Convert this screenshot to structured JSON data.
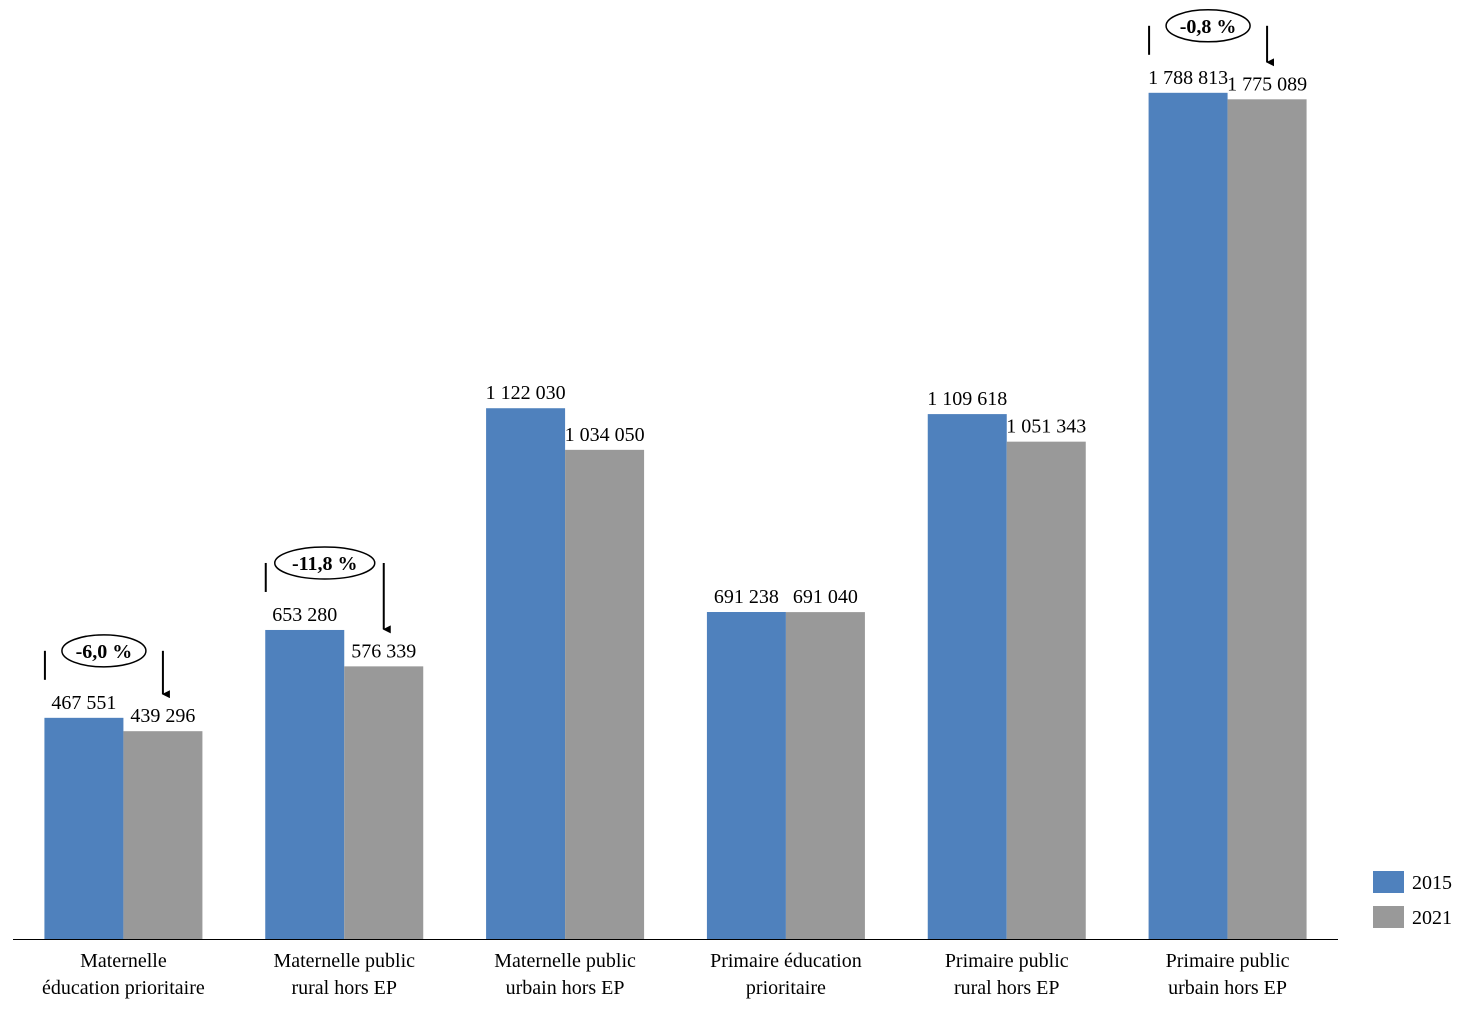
{
  "chart_data": {
    "type": "bar",
    "title": "",
    "xlabel": "",
    "ylabel": "",
    "ylim": [
      0,
      1985000
    ],
    "grid": false,
    "legend_placement": "bottom-right",
    "categories": [
      [
        "Maternelle",
        "éducation prioritaire"
      ],
      [
        "Maternelle public",
        "rural hors EP"
      ],
      [
        "Maternelle public",
        "urbain hors EP"
      ],
      [
        "Primaire éducation",
        "prioritaire"
      ],
      [
        "Primaire public",
        "rural hors EP"
      ],
      [
        "Primaire public",
        "urbain hors EP"
      ]
    ],
    "series": [
      {
        "name": "2015",
        "color": "#4f81bd",
        "values": [
          467551,
          653280,
          1122030,
          691238,
          1109618,
          1788813
        ],
        "labels": [
          "467 551",
          "653 280",
          "1 122 030",
          "691 238",
          "1 109 618",
          "1 788 813"
        ]
      },
      {
        "name": "2021",
        "color": "#999999",
        "values": [
          439296,
          576339,
          1034050,
          691040,
          1051343,
          1775089
        ],
        "labels": [
          "439 296",
          "576 339",
          "1 034 050",
          "691 040",
          "1 051 343",
          "1 775 089"
        ]
      }
    ],
    "annotations": [
      {
        "category_index": 0,
        "text": "-6,0 %"
      },
      {
        "category_index": 1,
        "text": "-11,8 %"
      },
      {
        "category_index": 5,
        "text": "-0,8 %"
      }
    ]
  }
}
